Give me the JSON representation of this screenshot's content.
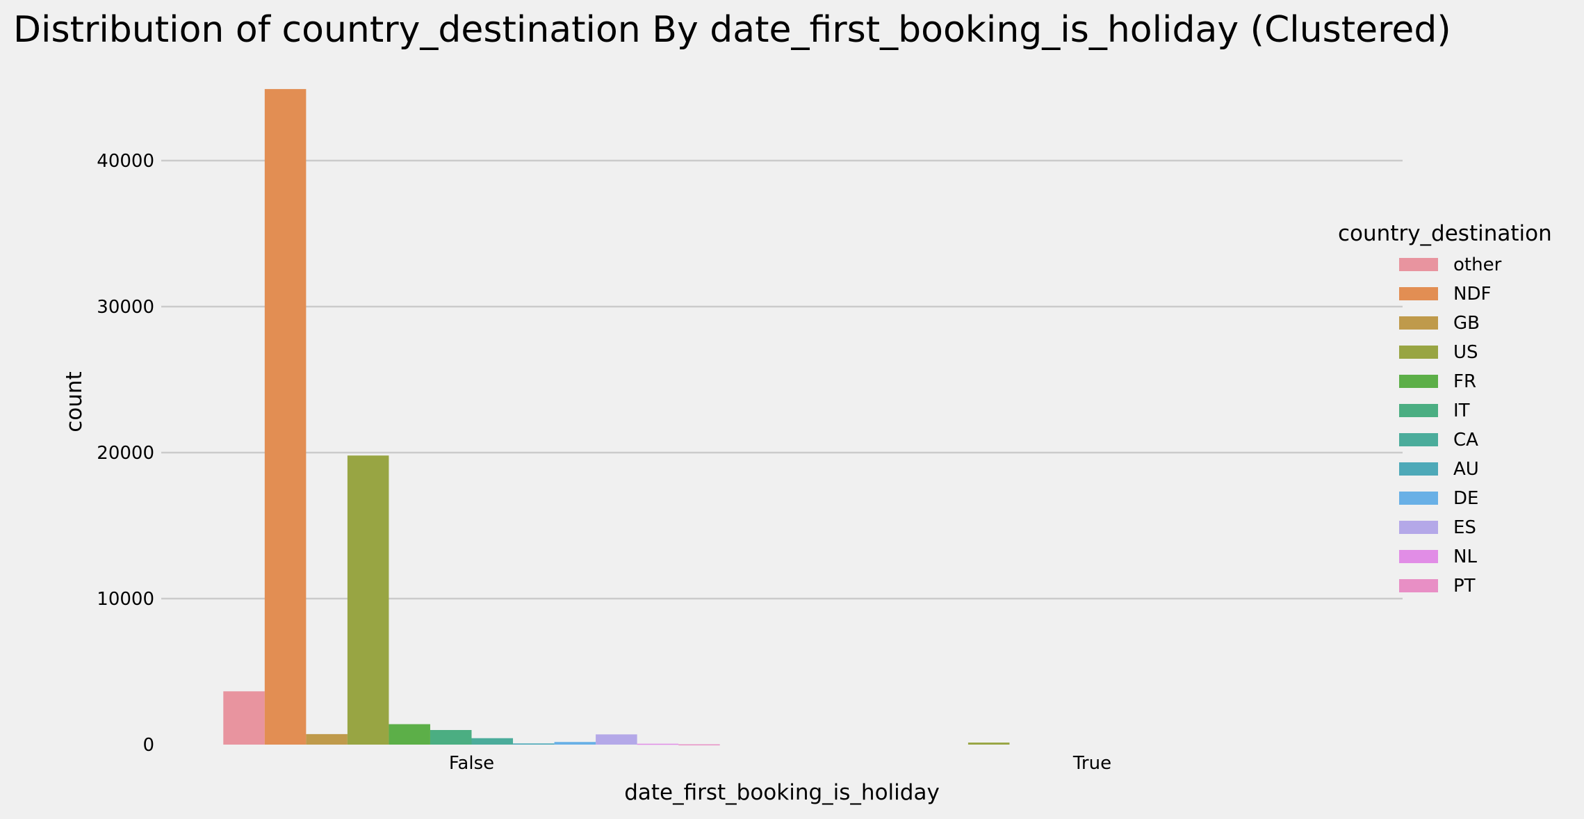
{
  "chart_data": {
    "type": "bar",
    "title": "Distribution of country_destination By date_first_booking_is_holiday (Clustered)",
    "xlabel": "date_first_booking_is_holiday",
    "ylabel": "count",
    "categories": [
      "False",
      "True"
    ],
    "ylim": [
      0,
      45000
    ],
    "yticks": [
      0,
      10000,
      20000,
      30000,
      40000
    ],
    "grid": "y",
    "legend": {
      "title": "country_destination",
      "placement": "center-right"
    },
    "series": [
      {
        "name": "other",
        "color": "#e8949f",
        "values": [
          3650,
          0
        ]
      },
      {
        "name": "NDF",
        "color": "#e28e53",
        "values": [
          44900,
          0
        ]
      },
      {
        "name": "GB",
        "color": "#bf9a4b",
        "values": [
          720,
          0
        ]
      },
      {
        "name": "US",
        "color": "#98a543",
        "values": [
          19800,
          140
        ]
      },
      {
        "name": "FR",
        "color": "#5caf48",
        "values": [
          1400,
          0
        ]
      },
      {
        "name": "IT",
        "color": "#4bae82",
        "values": [
          1000,
          0
        ]
      },
      {
        "name": "CA",
        "color": "#4bac9b",
        "values": [
          440,
          0
        ]
      },
      {
        "name": "AU",
        "color": "#4ea9b8",
        "values": [
          80,
          0
        ]
      },
      {
        "name": "DE",
        "color": "#69b0e6",
        "values": [
          180,
          0
        ]
      },
      {
        "name": "ES",
        "color": "#b4a8e8",
        "values": [
          700,
          0
        ]
      },
      {
        "name": "NL",
        "color": "#e18de6",
        "values": [
          60,
          0
        ]
      },
      {
        "name": "PT",
        "color": "#e88fc5",
        "values": [
          20,
          0
        ]
      }
    ]
  }
}
